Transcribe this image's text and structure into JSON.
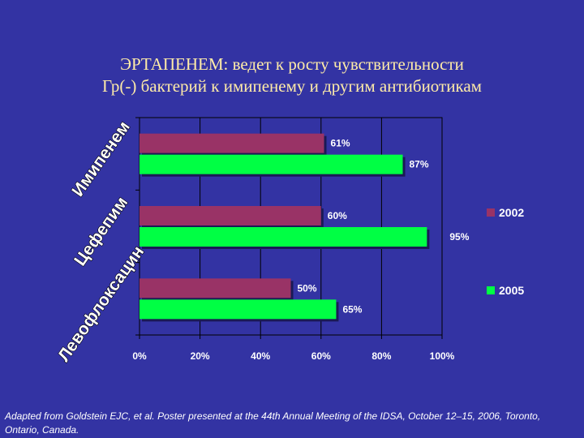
{
  "title": {
    "line1": "ЭРТАПЕНЕМ: ведет к росту чувствительности",
    "line2": "Гр(-) бактерий к имипенему и другим антибиотикам"
  },
  "chart_data": {
    "type": "bar",
    "orientation": "horizontal",
    "categories": [
      "Имипенем",
      "Цефепим",
      "Левофлоксацин"
    ],
    "series": [
      {
        "name": "2002",
        "values": [
          61,
          60,
          50
        ],
        "labels": [
          "61%",
          "60%",
          "50%"
        ],
        "color": "#993366"
      },
      {
        "name": "2005",
        "values": [
          87,
          95,
          65
        ],
        "labels": [
          "87%",
          "95%",
          "65%"
        ],
        "color": "#00ff44"
      }
    ],
    "xlim": [
      0,
      100
    ],
    "xticks": [
      "0%",
      "20%",
      "40%",
      "60%",
      "80%",
      "100%"
    ],
    "grid": true,
    "legend": "right",
    "colors": {
      "background": "#3333a3",
      "gridline": "#000000",
      "axis_text": "#ffffff",
      "data_label": "#ffffff"
    }
  },
  "footnote": "Adapted from Goldstein EJC, et al. Poster presented at the 44th Annual Meeting of the IDSA, October 12–15, 2006, Toronto, Ontario, Canada."
}
